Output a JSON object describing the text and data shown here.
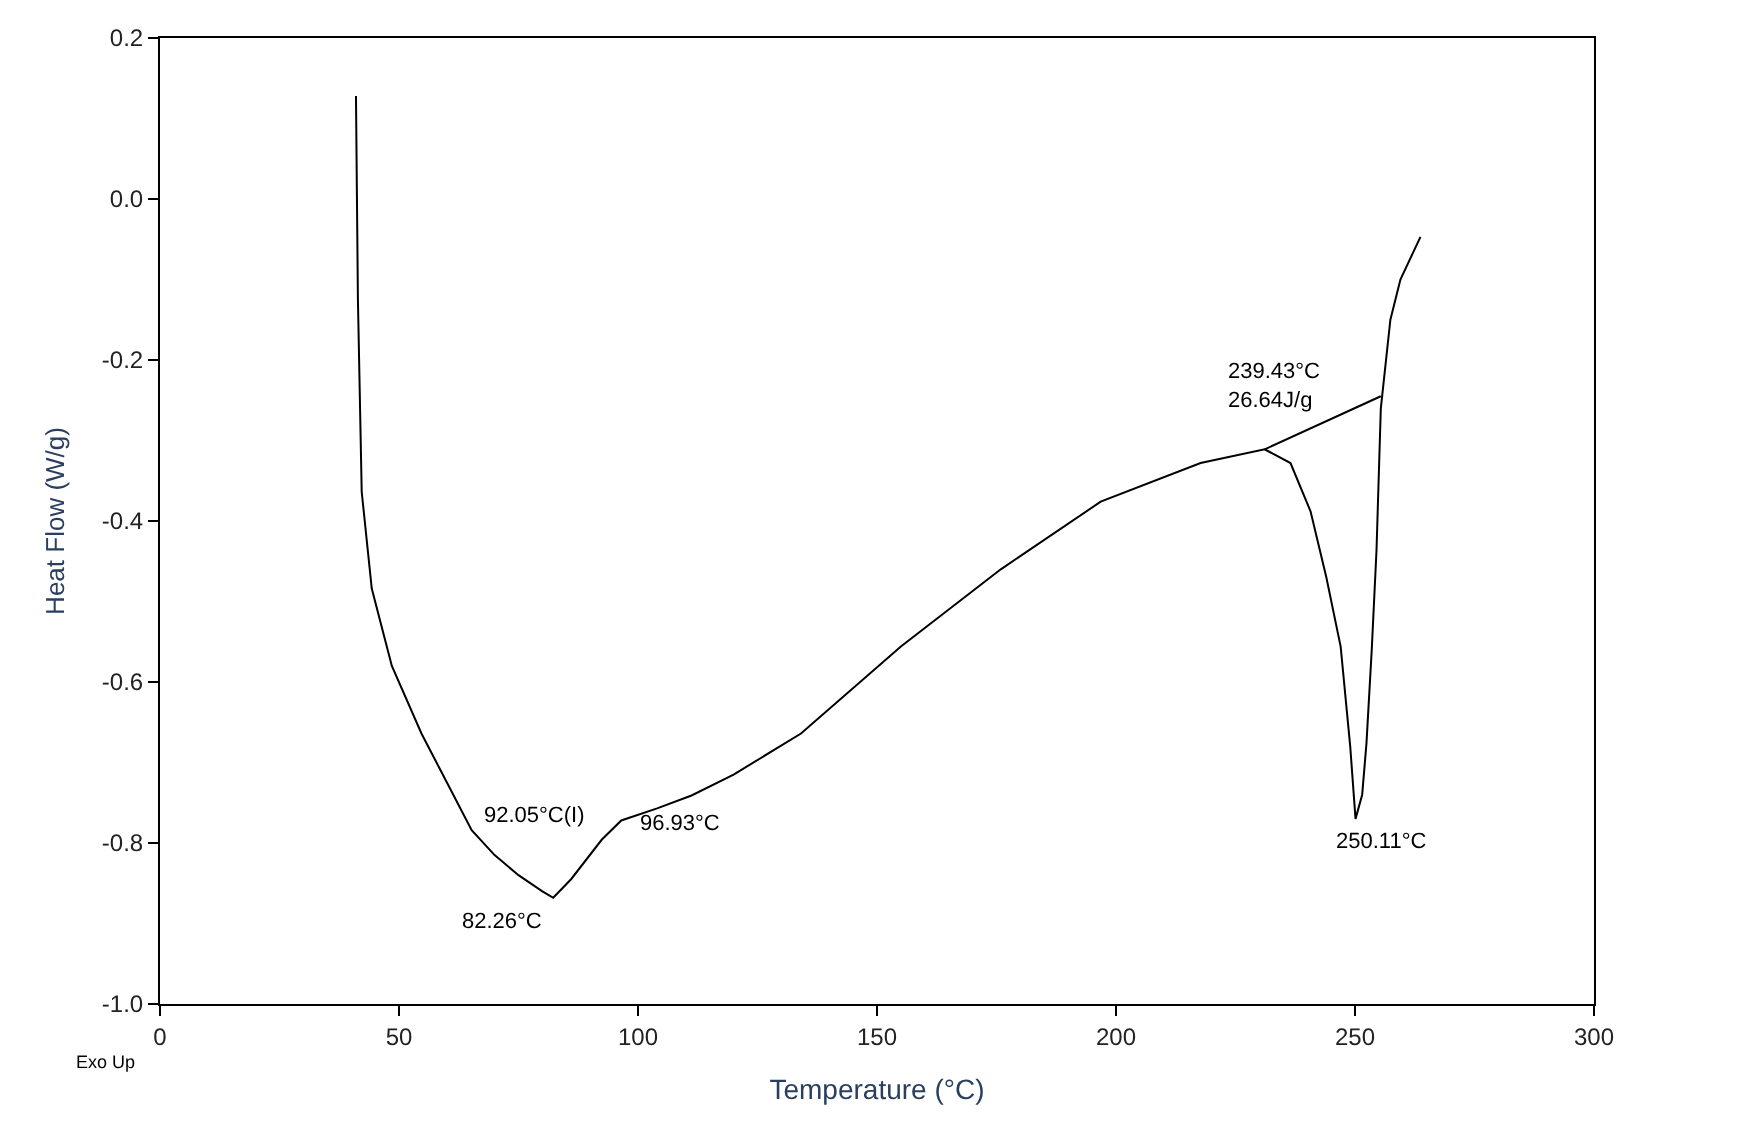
{
  "chart_data": {
    "type": "line",
    "xlabel": "Temperature (°C)",
    "ylabel": "Heat Flow (W/g)",
    "xlim": [
      0,
      300
    ],
    "xticks": [
      0,
      50,
      100,
      150,
      200,
      250,
      300
    ],
    "ylim": [
      -1.0,
      0.2
    ],
    "yticks": [
      {
        "value": 0.2,
        "label": "0.2"
      },
      {
        "value": 0.0,
        "label": "0.0"
      },
      {
        "value": -0.2,
        "label": "-0.2"
      },
      {
        "value": -0.4,
        "label": "-0.4"
      },
      {
        "value": -0.6,
        "label": "-0.6"
      },
      {
        "value": -0.8,
        "label": "-0.8"
      },
      {
        "value": -1.0,
        "label": "-1.0"
      }
    ],
    "series": [
      {
        "color": "#000000",
        "x": [
          41.0,
          41.4,
          42.2,
          44.3,
          48.5,
          54.7,
          61.0,
          65.2,
          70,
          75,
          80,
          82.26,
          86,
          92.4,
          96.5,
          104,
          111.2,
          120,
          134.1,
          155.0,
          175.9,
          196.8,
          217.7,
          231.1,
          236.5,
          240.7,
          244,
          247,
          249,
          250.11,
          251.5,
          252.4,
          253.5,
          254.5,
          255.4,
          257.4,
          259.5,
          263.7
        ],
        "values": [
          0.128,
          -0.124,
          -0.364,
          -0.484,
          -0.58,
          -0.664,
          -0.736,
          -0.784,
          -0.815,
          -0.84,
          -0.86,
          -0.868,
          -0.845,
          -0.796,
          -0.772,
          -0.757,
          -0.741,
          -0.715,
          -0.664,
          -0.556,
          -0.46,
          -0.376,
          -0.328,
          -0.311,
          -0.328,
          -0.388,
          -0.47,
          -0.556,
          -0.68,
          -0.77,
          -0.74,
          -0.676,
          -0.56,
          -0.436,
          -0.26,
          -0.15,
          -0.1,
          -0.047
        ]
      },
      {
        "color": "#000000",
        "x": [
          231.1,
          255.4
        ],
        "values": [
          -0.311,
          -0.245
        ]
      }
    ],
    "annotations": [
      {
        "text": "82.26°C",
        "x": 82.26,
        "y": -0.868
      },
      {
        "text": "92.05°C(I)",
        "x": 92.05,
        "y": -0.8
      },
      {
        "text": "96.93°C",
        "x": 96.93,
        "y": -0.772
      },
      {
        "text": "239.43°C\n26.64J/g",
        "x": 239.43,
        "y": -0.29
      },
      {
        "text": "250.11°C",
        "x": 250.11,
        "y": -0.77
      },
      "Exo Up"
    ]
  }
}
